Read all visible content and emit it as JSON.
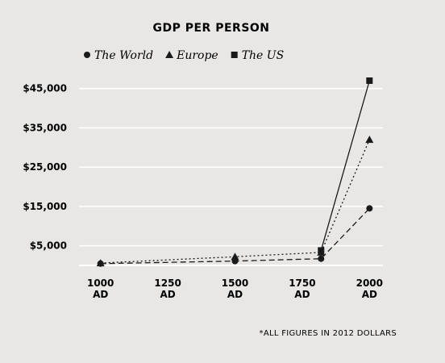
{
  "chart_data": {
    "type": "line",
    "title": "GDP PER PERSON",
    "footnote": "*ALL FIGURES IN 2012 DOLLARS",
    "xlabel": "",
    "ylabel": "",
    "x_ticks": [
      {
        "value": 1000,
        "line1": "1000",
        "line2": "AD"
      },
      {
        "value": 1250,
        "line1": "1250",
        "line2": "AD"
      },
      {
        "value": 1500,
        "line1": "1500",
        "line2": "AD"
      },
      {
        "value": 1750,
        "line1": "1750",
        "line2": "AD"
      },
      {
        "value": 2000,
        "line1": "2000",
        "line2": "AD"
      }
    ],
    "y_ticks": [
      {
        "value": 5000,
        "label": "$5,000"
      },
      {
        "value": 15000,
        "label": "$15,000"
      },
      {
        "value": 25000,
        "label": "$25,000"
      },
      {
        "value": 35000,
        "label": "$35,000"
      },
      {
        "value": 45000,
        "label": "$45,000"
      }
    ],
    "xlim": [
      920,
      2050
    ],
    "ylim": [
      0,
      47000
    ],
    "grid": true,
    "legend_position": "top-left",
    "series": [
      {
        "name": "The World",
        "marker": "circle",
        "dash": "dashed",
        "points": [
          [
            1000,
            450
          ],
          [
            1500,
            1100
          ],
          [
            1820,
            1700
          ],
          [
            2000,
            14500
          ]
        ]
      },
      {
        "name": "Europe",
        "marker": "triangle",
        "dash": "dotted",
        "points": [
          [
            1000,
            600
          ],
          [
            1500,
            2200
          ],
          [
            1820,
            3300
          ],
          [
            2000,
            32000
          ]
        ]
      },
      {
        "name": "The US",
        "marker": "square",
        "dash": "solid",
        "points": [
          [
            1820,
            3800
          ],
          [
            2000,
            47000
          ]
        ]
      }
    ]
  }
}
